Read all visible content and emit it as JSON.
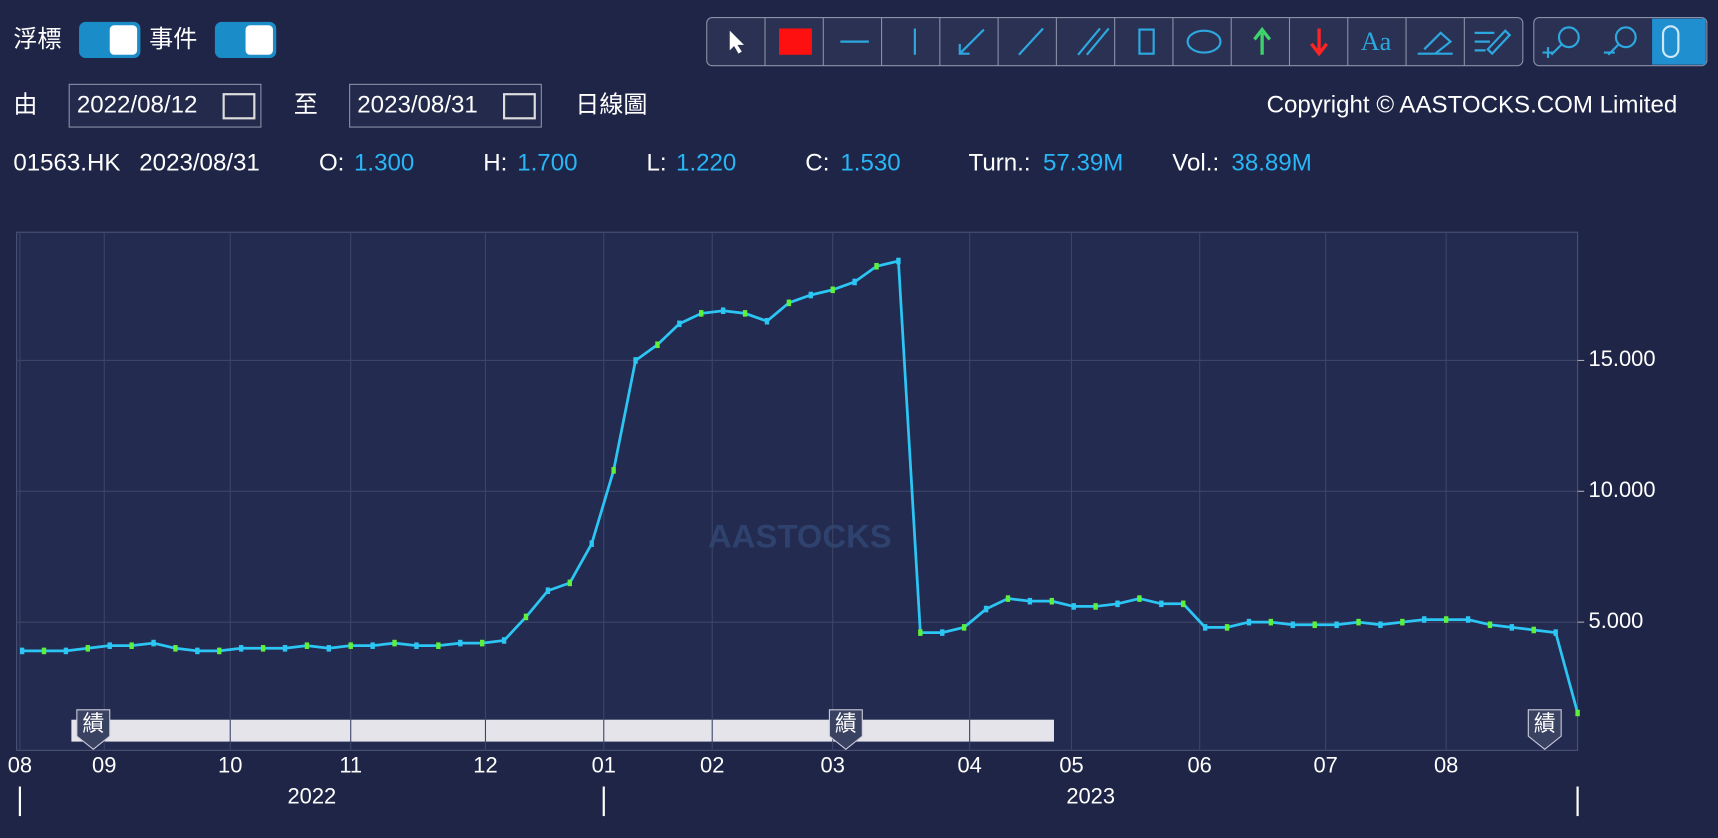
{
  "toolbar": {
    "float_label": "浮標",
    "event_label": "事件",
    "text_tool": "Aa"
  },
  "range": {
    "from_label": "由",
    "from": "2022/08/12",
    "to_label": "至",
    "to": "2023/08/31",
    "period": "日線圖",
    "copyright": "Copyright © AASTOCKS.COM Limited"
  },
  "quote": {
    "symbol": "01563.HK",
    "date": "2023/08/31",
    "fields": [
      {
        "label": "O:",
        "value": "1.300"
      },
      {
        "label": "H:",
        "value": "1.700"
      },
      {
        "label": "L:",
        "value": "1.220"
      },
      {
        "label": "C:",
        "value": "1.530"
      },
      {
        "label": "Turn.:",
        "value": "57.39M"
      },
      {
        "label": "Vol.:",
        "value": "38.89M"
      }
    ]
  },
  "chart_data": {
    "type": "line",
    "watermark": "AASTOCKS",
    "categories": [
      null,
      null,
      null,
      null,
      null,
      null,
      null,
      null,
      null,
      null,
      null,
      null,
      null,
      null,
      null,
      null,
      null,
      null,
      null,
      null,
      null,
      null,
      null,
      null,
      null,
      null,
      null,
      null,
      null,
      null,
      null,
      null,
      null,
      null,
      null,
      null,
      null,
      null,
      null,
      null,
      null,
      null,
      null,
      null,
      null,
      null,
      null,
      null,
      null,
      null,
      null,
      null,
      null,
      null,
      null,
      null,
      null,
      null,
      null,
      null,
      null,
      null,
      null,
      null,
      null,
      null,
      null,
      null,
      null,
      null,
      null,
      null
    ],
    "series": [
      {
        "color": "#2cc6f4",
        "values": [
          3.9,
          3.9,
          3.9,
          4.0,
          4.1,
          4.1,
          4.2,
          4.0,
          3.9,
          3.9,
          4.0,
          4.0,
          4.0,
          4.1,
          4.0,
          4.1,
          4.1,
          4.2,
          4.1,
          4.1,
          4.2,
          4.2,
          4.3,
          5.2,
          6.2,
          6.5,
          8.0,
          10.8,
          15.0,
          15.6,
          16.4,
          16.8,
          16.9,
          16.8,
          16.5,
          17.2,
          17.5,
          17.7,
          18.0,
          18.6,
          18.8,
          4.6,
          4.6,
          4.8,
          5.5,
          5.9,
          5.8,
          5.8,
          5.6,
          5.6,
          5.7,
          5.9,
          5.7,
          5.7,
          4.8,
          4.8,
          5.0,
          5.0,
          4.9,
          4.9,
          4.9,
          5.0,
          4.9,
          5.0,
          5.1,
          5.1,
          5.1,
          4.9,
          4.8,
          4.7,
          4.6,
          1.53
        ]
      }
    ],
    "xlim": [
      -0.25,
      71
    ],
    "xticks": [
      {
        "value": -0.1,
        "label": "08"
      },
      {
        "value": 3.75,
        "label": "09"
      },
      {
        "value": 9.5,
        "label": "10"
      },
      {
        "value": 15,
        "label": "11"
      },
      {
        "value": 21.15,
        "label": "12"
      },
      {
        "value": 26.55,
        "label": "01"
      },
      {
        "value": 31.5,
        "label": "02"
      },
      {
        "value": 37,
        "label": "03"
      },
      {
        "value": 43.25,
        "label": "04"
      },
      {
        "value": 47.9,
        "label": "05"
      },
      {
        "value": 53.75,
        "label": "06"
      },
      {
        "value": 59.5,
        "label": "07"
      },
      {
        "value": 65,
        "label": "08"
      }
    ],
    "year_ticks": [
      {
        "value": -0.1,
        "label": "2022"
      },
      {
        "value": 26.55,
        "label": "2023"
      }
    ],
    "ylim": [
      0.1,
      19.9
    ],
    "yticks": [
      {
        "value": 5,
        "label": "5.000"
      },
      {
        "value": 10,
        "label": "10.000"
      },
      {
        "value": 15,
        "label": "15.000"
      }
    ],
    "grid": true,
    "events": [
      "績",
      "績",
      "績"
    ]
  }
}
